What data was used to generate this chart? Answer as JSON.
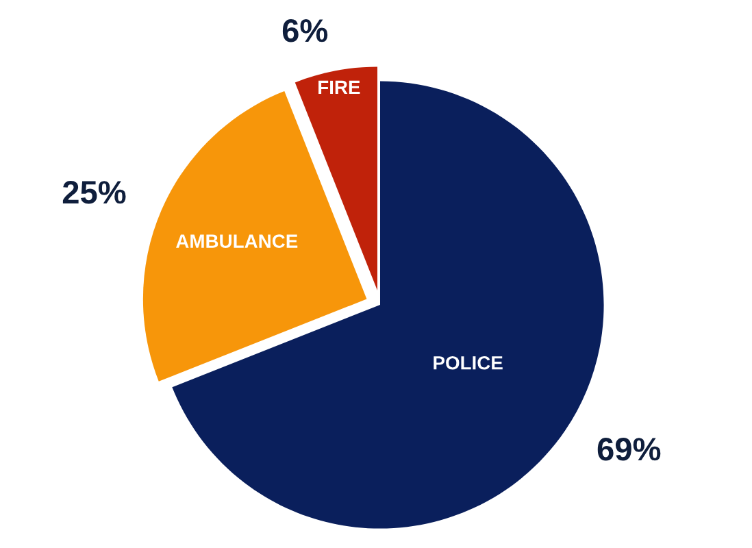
{
  "chart_data": {
    "type": "pie",
    "categories": [
      "POLICE",
      "AMBULANCE",
      "FIRE"
    ],
    "values": [
      69,
      25,
      6
    ],
    "colors": [
      "#0a1f5c",
      "#f7960a",
      "#c0220a"
    ],
    "value_labels": [
      "69%",
      "25%",
      "6%"
    ]
  }
}
